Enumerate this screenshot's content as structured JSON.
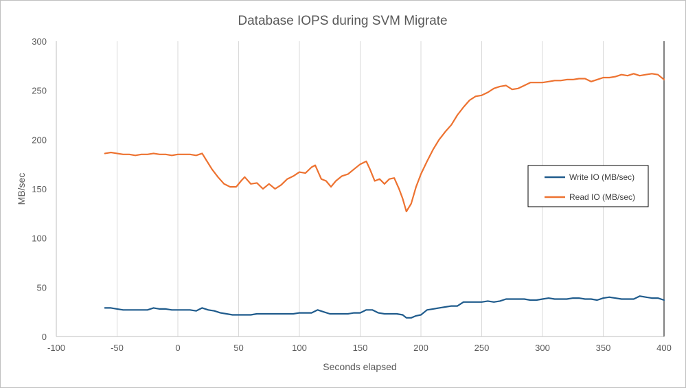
{
  "chart_data": {
    "type": "line",
    "title": "Database IOPS during SVM Migrate",
    "xlabel": "Seconds elapsed",
    "ylabel": "MB/sec",
    "xlim": [
      -100,
      400
    ],
    "ylim": [
      0,
      300
    ],
    "xticks": [
      -100,
      -50,
      0,
      50,
      100,
      150,
      200,
      250,
      300,
      350,
      400
    ],
    "yticks": [
      0,
      50,
      100,
      150,
      200,
      250,
      300
    ],
    "grid": "vertical",
    "legend_position": "right",
    "series": [
      {
        "name": "Write IO (MB/sec)",
        "color": "#1f5b8c",
        "x": [
          -60,
          -55,
          -50,
          -45,
          -40,
          -35,
          -30,
          -25,
          -20,
          -15,
          -10,
          -5,
          0,
          5,
          10,
          15,
          20,
          25,
          30,
          35,
          40,
          45,
          50,
          55,
          60,
          65,
          70,
          75,
          80,
          85,
          90,
          95,
          100,
          105,
          110,
          115,
          120,
          125,
          130,
          135,
          140,
          145,
          150,
          155,
          160,
          165,
          170,
          175,
          180,
          185,
          188,
          192,
          196,
          200,
          205,
          210,
          215,
          220,
          225,
          230,
          235,
          240,
          245,
          250,
          255,
          260,
          265,
          270,
          275,
          280,
          285,
          290,
          295,
          300,
          305,
          310,
          315,
          320,
          325,
          330,
          335,
          340,
          345,
          350,
          355,
          360,
          365,
          370,
          375,
          380,
          385,
          390,
          395,
          400
        ],
        "values": [
          29,
          29,
          28,
          27,
          27,
          27,
          27,
          27,
          29,
          28,
          28,
          27,
          27,
          27,
          27,
          26,
          29,
          27,
          26,
          24,
          23,
          22,
          22,
          22,
          22,
          23,
          23,
          23,
          23,
          23,
          23,
          23,
          24,
          24,
          24,
          27,
          25,
          23,
          23,
          23,
          23,
          24,
          24,
          27,
          27,
          24,
          23,
          23,
          23,
          22,
          19,
          19,
          21,
          22,
          27,
          28,
          29,
          30,
          31,
          31,
          35,
          35,
          35,
          35,
          36,
          35,
          36,
          38,
          38,
          38,
          38,
          37,
          37,
          38,
          39,
          38,
          38,
          38,
          39,
          39,
          38,
          38,
          37,
          39,
          40,
          39,
          38,
          38,
          38,
          41,
          40,
          39,
          39,
          37
        ]
      },
      {
        "name": "Read IO (MB/sec)",
        "color": "#ed7230",
        "x": [
          -60,
          -55,
          -50,
          -45,
          -40,
          -35,
          -30,
          -25,
          -20,
          -15,
          -10,
          -5,
          0,
          5,
          10,
          15,
          20,
          23,
          28,
          33,
          38,
          43,
          48,
          52,
          55,
          60,
          65,
          70,
          75,
          80,
          85,
          90,
          95,
          100,
          105,
          110,
          113,
          118,
          122,
          126,
          130,
          135,
          140,
          145,
          150,
          155,
          158,
          162,
          166,
          170,
          174,
          178,
          182,
          185,
          188,
          192,
          196,
          200,
          205,
          210,
          215,
          220,
          225,
          230,
          235,
          240,
          245,
          250,
          255,
          260,
          265,
          270,
          275,
          280,
          285,
          290,
          295,
          300,
          305,
          310,
          315,
          320,
          325,
          330,
          335,
          340,
          345,
          350,
          355,
          360,
          365,
          370,
          375,
          380,
          385,
          390,
          395,
          400
        ],
        "values": [
          186,
          187,
          186,
          185,
          185,
          184,
          185,
          185,
          186,
          185,
          185,
          184,
          185,
          185,
          185,
          184,
          186,
          180,
          170,
          162,
          155,
          152,
          152,
          158,
          162,
          155,
          156,
          150,
          155,
          150,
          154,
          160,
          163,
          167,
          166,
          172,
          174,
          160,
          158,
          152,
          158,
          163,
          165,
          170,
          175,
          178,
          170,
          158,
          160,
          155,
          160,
          161,
          150,
          140,
          127,
          135,
          152,
          165,
          178,
          190,
          200,
          208,
          215,
          225,
          233,
          240,
          244,
          245,
          248,
          252,
          254,
          255,
          251,
          252,
          255,
          258,
          258,
          258,
          259,
          260,
          260,
          261,
          261,
          262,
          262,
          259,
          261,
          263,
          263,
          264,
          266,
          265,
          267,
          265,
          266,
          267,
          266,
          261
        ]
      }
    ]
  }
}
